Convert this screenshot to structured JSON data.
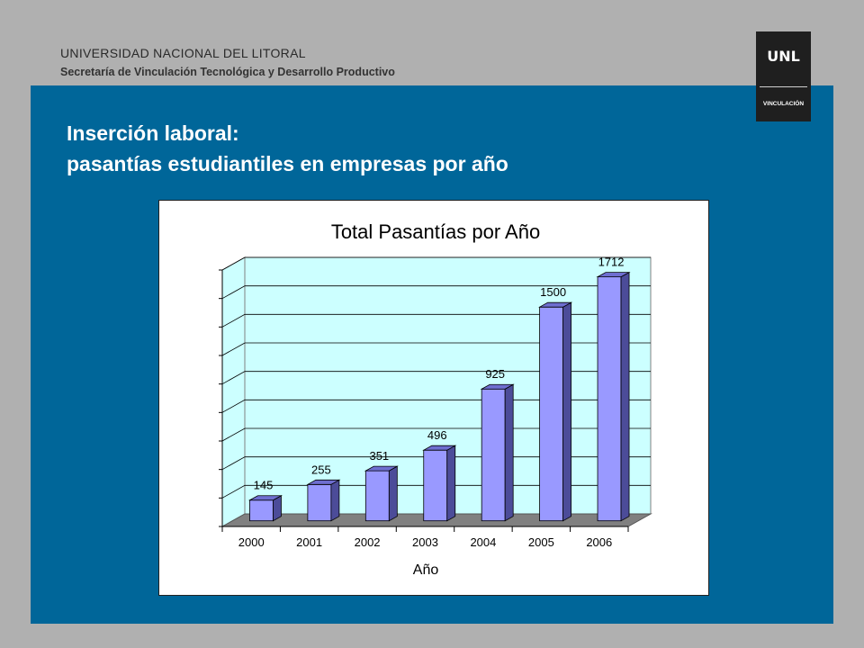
{
  "header": {
    "org_name": "UNIVERSIDAD NACIONAL DEL LITORAL",
    "org_sub": "Secretaría de Vinculación Tecnológica y Desarrollo Productivo"
  },
  "logo": {
    "name": "UNL",
    "sub": "VINCULACIÓN"
  },
  "slide": {
    "title_line1": "Inserción laboral:",
    "title_line2": "pasantías estudiantiles en empresas por año"
  },
  "colors": {
    "panel": "#006699",
    "bar_front": "#9999ff",
    "bar_side": "#4c4c99",
    "bar_top": "#6e6ed0",
    "wall": "#ccffff",
    "floor": "#808080"
  },
  "chart_data": {
    "type": "bar",
    "title": "Total Pasantías por Año",
    "xlabel": "Año",
    "ylabel": "",
    "categories": [
      "2000",
      "2001",
      "2002",
      "2003",
      "2004",
      "2005",
      "2006"
    ],
    "values": [
      145,
      255,
      351,
      496,
      925,
      1500,
      1712
    ],
    "ylim": [
      0,
      1800
    ],
    "grid": true,
    "legend": "none",
    "three_d": true
  }
}
